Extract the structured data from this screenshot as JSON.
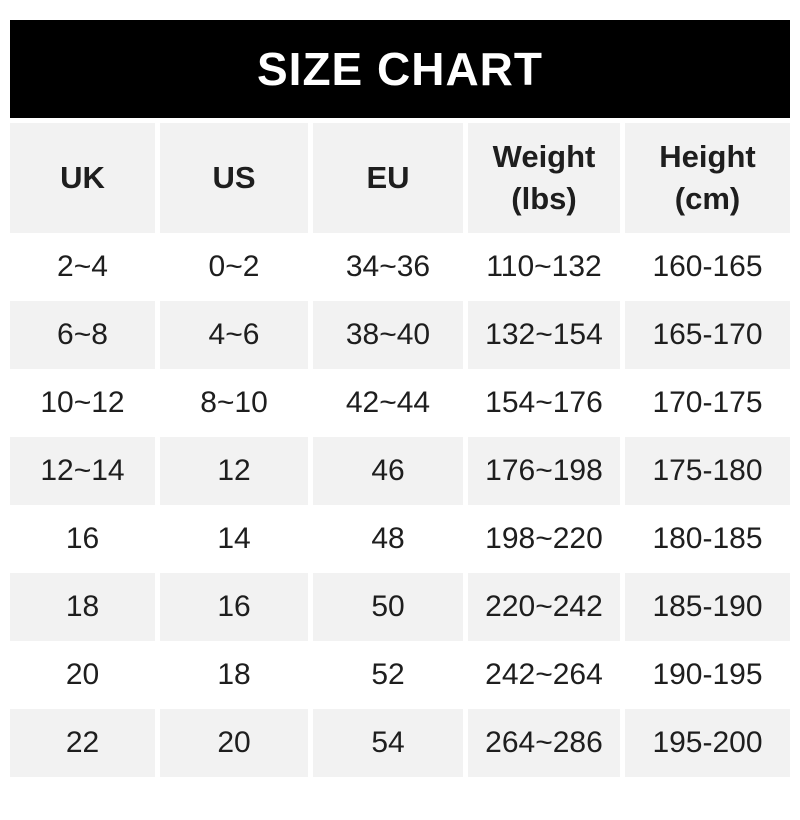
{
  "title": "SIZE CHART",
  "colors": {
    "banner_bg": "#000000",
    "banner_text": "#ffffff",
    "stripe": "#f2f2f2",
    "text": "#1e1e1e",
    "page_bg": "#ffffff"
  },
  "chart_data": {
    "type": "table",
    "title": "SIZE CHART",
    "columns": [
      "UK",
      "US",
      "EU",
      "Weight (lbs)",
      "Height (cm)"
    ],
    "rows": [
      [
        "2~4",
        "0~2",
        "34~36",
        "110~132",
        "160-165"
      ],
      [
        "6~8",
        "4~6",
        "38~40",
        "132~154",
        "165-170"
      ],
      [
        "10~12",
        "8~10",
        "42~44",
        "154~176",
        "170-175"
      ],
      [
        "12~14",
        "12",
        "46",
        "176~198",
        "175-180"
      ],
      [
        "16",
        "14",
        "48",
        "198~220",
        "180-185"
      ],
      [
        "18",
        "16",
        "50",
        "220~242",
        "185-190"
      ],
      [
        "20",
        "18",
        "52",
        "242~264",
        "190-195"
      ],
      [
        "22",
        "20",
        "54",
        "264~286",
        "195-200"
      ]
    ],
    "layout": {
      "striping": "header and even data rows shaded",
      "column_gaps": true,
      "grid_lines": "none"
    }
  }
}
